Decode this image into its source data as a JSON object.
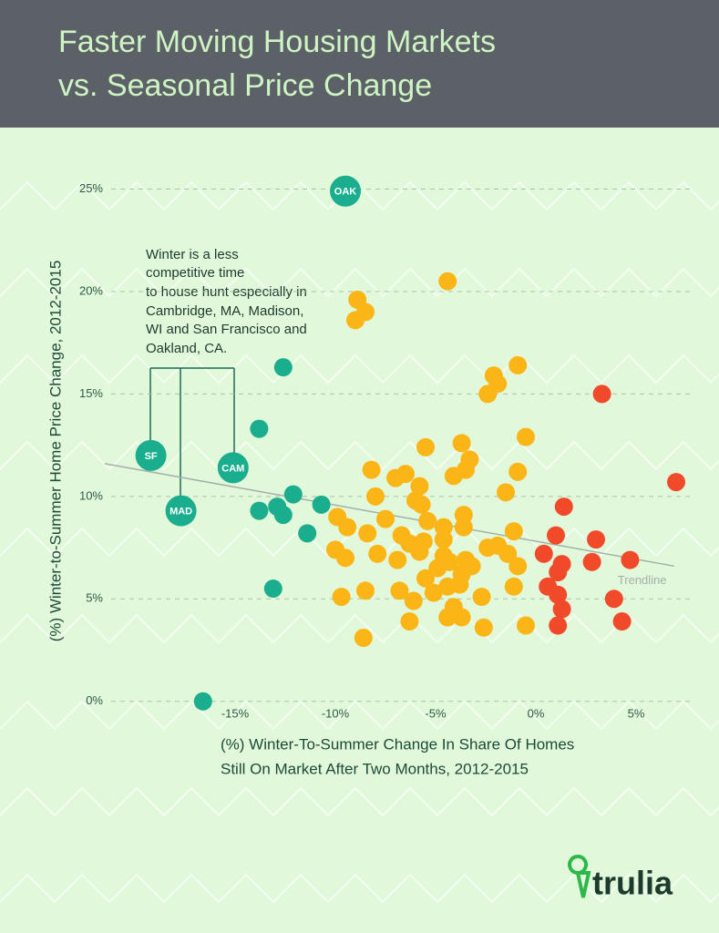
{
  "chart_data": {
    "type": "scatter",
    "title": [
      "Faster Moving Housing Markets",
      "vs. Seasonal Price Change"
    ],
    "xlabel": [
      "(%) Winter-To-Summer Change In Share Of Homes",
      "Still On Market After Two Months, 2012-2015"
    ],
    "ylabel": "(%) Winter-to-Summer Home Price Change, 2012-2015",
    "annotation": [
      "Winter is a less",
      "competitive time",
      "to house hunt especially in",
      "Cambridge, MA, Madison,",
      "WI and San Francisco and",
      "Oakland, CA."
    ],
    "logo": "trulia",
    "xlim": [
      -22,
      8
    ],
    "ylim": [
      -0.5,
      26
    ],
    "xticks": [
      {
        "value": -15,
        "label": "-15%"
      },
      {
        "value": -10,
        "label": "-10%"
      },
      {
        "value": -5,
        "label": "-5%"
      },
      {
        "value": 0,
        "label": "0%"
      },
      {
        "value": 5,
        "label": "5%"
      }
    ],
    "yticks": [
      {
        "value": 0,
        "label": "0%"
      },
      {
        "value": 5,
        "label": "5%"
      },
      {
        "value": 10,
        "label": "10%"
      },
      {
        "value": 15,
        "label": "15%"
      },
      {
        "value": 20,
        "label": "20%"
      },
      {
        "value": 25,
        "label": "25%"
      }
    ],
    "grid": true,
    "trendline": {
      "label": "Trendline",
      "color": "#a3b0aa",
      "x": [
        -21.5,
        6.9
      ],
      "y": [
        11.6,
        6.6
      ]
    },
    "series": [
      {
        "color": "#1aae8f",
        "labels": [
          "OAK",
          "SF",
          "MAD",
          "CAM"
        ],
        "x": [
          -9.5,
          -19.2,
          -17.7,
          -15.1
        ],
        "y": [
          24.9,
          12.0,
          9.3,
          11.4
        ]
      },
      {
        "color": "#1aae8f",
        "x": [
          -12.6,
          -13.8,
          -13.8,
          -12.9,
          -12.6,
          -12.1,
          -11.4,
          -10.7,
          -13.1,
          -16.6
        ],
        "y": [
          16.3,
          13.3,
          9.3,
          9.5,
          9.1,
          10.1,
          8.2,
          9.6,
          5.5,
          0.0
        ]
      },
      {
        "color": "#fbb516",
        "x": [
          -4.4,
          -8.9,
          -8.5,
          -9.0,
          -0.9,
          -2.1,
          -1.9,
          -2.4,
          -5.5,
          -3.7,
          -0.5,
          -3.3,
          -3.5,
          -4.1,
          -0.9,
          -8.2,
          -7.0,
          -6.5,
          -5.8,
          -8.0,
          -1.5,
          -6.0,
          -5.7,
          -9.9,
          -9.4,
          -7.5,
          -5.4,
          -3.6,
          -3.6,
          -4.6,
          -8.4,
          -6.7,
          -6.3,
          -4.6,
          -5.6,
          -1.1,
          -1.9,
          -2.4,
          -1.4,
          -10.0,
          -9.5,
          -7.9,
          -5.8,
          -6.9,
          -4.6,
          -4.3,
          -4.9,
          -3.5,
          -3.2,
          -3.7,
          -0.9,
          -5.5,
          -4.4,
          -3.8,
          -1.1,
          -6.8,
          -5.1,
          -8.5,
          -9.7,
          -6.1,
          -2.7,
          -4.1,
          -4.4,
          -3.7,
          -6.3,
          -0.5,
          -2.6,
          -8.6
        ],
        "y": [
          20.5,
          19.6,
          19.0,
          18.6,
          16.4,
          15.9,
          15.5,
          15.0,
          12.4,
          12.6,
          12.9,
          11.8,
          11.3,
          11.0,
          11.2,
          11.3,
          10.9,
          11.1,
          10.5,
          10.0,
          10.2,
          9.8,
          9.6,
          9.0,
          8.5,
          8.9,
          8.8,
          9.1,
          8.5,
          8.5,
          8.2,
          8.1,
          7.7,
          7.9,
          7.8,
          8.3,
          7.6,
          7.5,
          7.2,
          7.4,
          7.0,
          7.2,
          7.3,
          6.9,
          7.1,
          6.8,
          6.5,
          6.9,
          6.6,
          6.2,
          6.6,
          6.0,
          5.6,
          5.7,
          5.6,
          5.4,
          5.3,
          5.4,
          5.1,
          4.9,
          5.1,
          4.6,
          4.1,
          4.1,
          3.9,
          3.7,
          3.6,
          3.1
        ]
      },
      {
        "color": "#f04a2a",
        "x": [
          7.0,
          3.3,
          0.4,
          1.0,
          1.4,
          0.6,
          1.1,
          1.3,
          3.0,
          2.8,
          4.7,
          1.1,
          1.3,
          1.1,
          3.9,
          4.3
        ],
        "y": [
          10.7,
          15.0,
          7.2,
          8.1,
          9.5,
          5.6,
          6.3,
          6.7,
          7.9,
          6.8,
          6.9,
          5.2,
          4.5,
          3.7,
          5.0,
          3.9
        ]
      }
    ]
  }
}
